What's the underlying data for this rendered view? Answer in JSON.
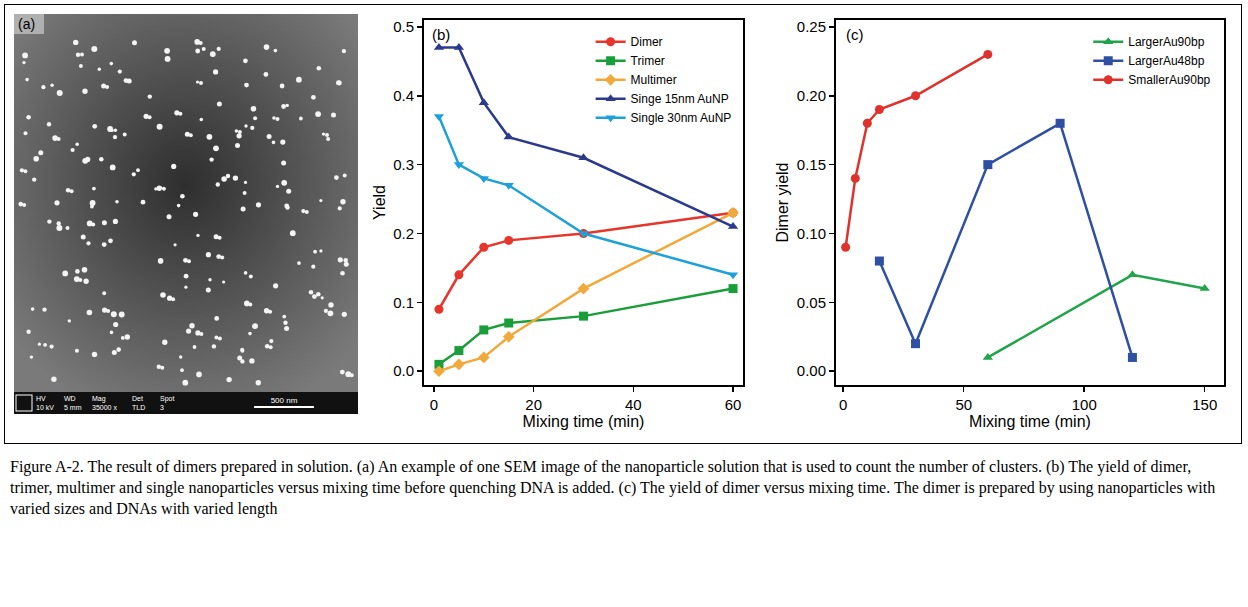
{
  "panel_a": {
    "type": "image",
    "label": "(a)",
    "info_bar": {
      "fields": [
        "HV",
        "WD",
        "Mag",
        "Det",
        "Spot"
      ],
      "values": [
        "10 kV",
        "5 mm",
        "35000 x",
        "TLD",
        "3"
      ]
    },
    "scale_bar": "500 nm"
  },
  "chart_data": [
    {
      "type": "line",
      "title": "(b)",
      "x_label": "Mixing time (min)",
      "y_label": "Yield",
      "xlim": [
        -2,
        62
      ],
      "xticks": [
        0,
        20,
        40,
        60
      ],
      "ylim": [
        -0.02,
        0.51
      ],
      "yticks": [
        {
          "value": 0,
          "label": "0.0"
        },
        0.1,
        0.2,
        0.3,
        0.4,
        0.5
      ],
      "legend": "top right",
      "series": [
        {
          "name": "Dimer",
          "color": "#e8352b",
          "marker": "circle",
          "x": [
            1,
            5,
            10,
            15,
            30,
            60
          ],
          "values": [
            0.09,
            0.14,
            0.18,
            0.19,
            0.2,
            0.23
          ]
        },
        {
          "name": "Trimer",
          "color": "#1a9e3a",
          "marker": "square",
          "x": [
            1,
            5,
            10,
            15,
            30,
            60
          ],
          "values": [
            0.01,
            0.03,
            0.06,
            0.07,
            0.08,
            0.12
          ]
        },
        {
          "name": "Multimer",
          "color": "#f2a93b",
          "marker": "diamond",
          "x": [
            1,
            5,
            10,
            15,
            30,
            60
          ],
          "values": [
            0.0,
            0.01,
            0.02,
            0.05,
            0.12,
            0.23
          ]
        },
        {
          "name": "Singe 15nm AuNP",
          "color": "#2b3a8c",
          "marker": "triangle-up",
          "x": [
            1,
            5,
            10,
            15,
            30,
            60
          ],
          "values": [
            0.47,
            0.47,
            0.39,
            0.34,
            0.31,
            0.21
          ]
        },
        {
          "name": "Single 30nm AuNP",
          "color": "#1da1d8",
          "marker": "triangle-down",
          "x": [
            1,
            5,
            10,
            15,
            30,
            60
          ],
          "values": [
            0.37,
            0.3,
            0.28,
            0.27,
            0.2,
            0.14
          ]
        }
      ]
    },
    {
      "type": "line",
      "title": "(c)",
      "x_label": "Mixing time (min)",
      "y_label": "Dimer yield",
      "xlim": [
        -3,
        158
      ],
      "xticks": [
        0,
        50,
        100,
        150
      ],
      "ylim": [
        -0.01,
        0.255
      ],
      "yticks": [
        {
          "value": 0,
          "label": "0.00"
        },
        {
          "value": 0.05,
          "label": "0.05"
        },
        {
          "value": 0.1,
          "label": "0.10"
        },
        {
          "value": 0.15,
          "label": "0.15"
        },
        {
          "value": 0.2,
          "label": "0.20"
        },
        {
          "value": 0.25,
          "label": "0.25"
        }
      ],
      "legend": "top right",
      "series": [
        {
          "name": "LargerAu90bp",
          "color": "#21a44a",
          "marker": "triangle-up",
          "x": [
            60,
            120,
            150
          ],
          "values": [
            0.01,
            0.07,
            0.06
          ]
        },
        {
          "name": "LargerAu48bp",
          "color": "#2e4fa3",
          "marker": "square",
          "x": [
            15,
            30,
            60,
            90,
            120
          ],
          "values": [
            0.08,
            0.02,
            0.15,
            0.18,
            0.01
          ]
        },
        {
          "name": "SmallerAu90bp",
          "color": "#e0322c",
          "marker": "circle",
          "x": [
            1,
            5,
            10,
            15,
            30,
            60
          ],
          "values": [
            0.09,
            0.14,
            0.18,
            0.19,
            0.2,
            0.23
          ]
        }
      ]
    }
  ],
  "caption": "Figure A-2. The result of dimers prepared in solution. (a) An example of one SEM image of the nanoparticle solution that is used to count the number of clusters. (b) The yield of dimer, trimer, multimer and single nanoparticles versus mixing time before quenching DNA is added. (c) The yield of dimer versus mixing time. The dimer is prepared by using nanoparticles with varied sizes and DNAs with varied length"
}
